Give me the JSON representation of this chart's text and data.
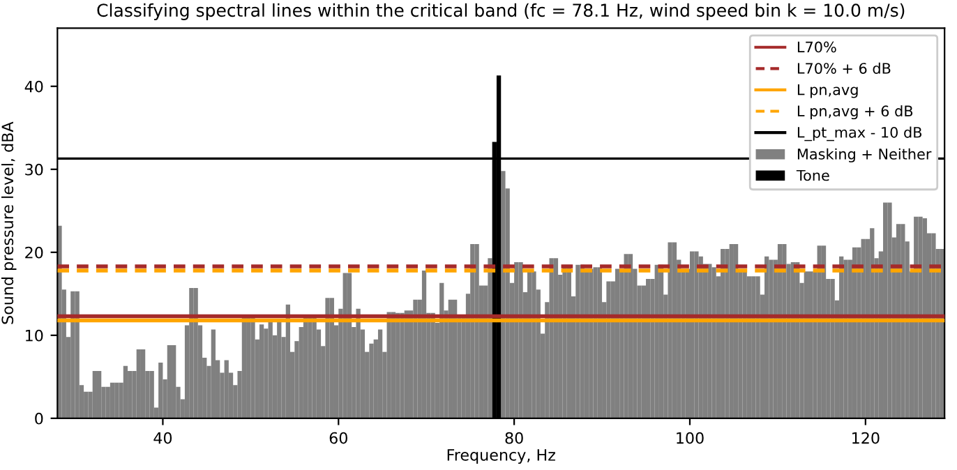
{
  "chart_data": {
    "type": "bar",
    "title": "Classifying spectral lines within the critical band (fc = 78.1 Hz, wind speed bin k = 10.0 m/s)",
    "xlabel": "Frequency, Hz",
    "ylabel": "Sound pressure level, dBA",
    "x": [
      28.0,
      28.5,
      29.0,
      29.5,
      30.0,
      30.5,
      31.0,
      31.5,
      32.0,
      32.5,
      33.0,
      33.5,
      34.0,
      34.5,
      35.0,
      35.5,
      36.0,
      36.5,
      37.0,
      37.5,
      38.0,
      38.5,
      39.0,
      39.5,
      40.0,
      40.5,
      41.0,
      41.5,
      42.0,
      42.5,
      43.0,
      43.5,
      44.0,
      44.5,
      45.0,
      45.5,
      46.0,
      46.5,
      47.0,
      47.5,
      48.0,
      48.5,
      49.0,
      49.5,
      50.0,
      50.5,
      51.0,
      51.5,
      52.0,
      52.5,
      53.0,
      53.5,
      54.0,
      54.5,
      55.0,
      55.5,
      56.0,
      56.5,
      57.0,
      57.5,
      58.0,
      58.5,
      59.0,
      59.5,
      60.0,
      60.5,
      61.0,
      61.5,
      62.0,
      62.5,
      63.0,
      63.5,
      64.0,
      64.5,
      65.0,
      65.5,
      66.0,
      66.5,
      67.0,
      67.5,
      68.0,
      68.5,
      69.0,
      69.5,
      70.0,
      70.5,
      71.0,
      71.5,
      72.0,
      72.5,
      73.0,
      73.5,
      74.0,
      74.5,
      75.0,
      75.5,
      76.0,
      76.5,
      77.0,
      77.5,
      78.0,
      78.5,
      79.0,
      79.5,
      80.0,
      80.5,
      81.0,
      81.5,
      82.0,
      82.5,
      83.0,
      83.5,
      84.0,
      84.5,
      85.0,
      85.5,
      86.0,
      86.5,
      87.0,
      87.5,
      88.0,
      88.5,
      89.0,
      89.5,
      90.0,
      90.5,
      91.0,
      91.5,
      92.0,
      92.5,
      93.0,
      93.5,
      94.0,
      94.5,
      95.0,
      95.5,
      96.0,
      96.5,
      97.0,
      97.5,
      98.0,
      98.5,
      99.0,
      99.5,
      100.0,
      100.5,
      101.0,
      101.5,
      102.0,
      102.5,
      103.0,
      103.5,
      104.0,
      104.5,
      105.0,
      105.5,
      106.0,
      106.5,
      107.0,
      107.5,
      108.0,
      108.5,
      109.0,
      109.5,
      110.0,
      110.5,
      111.0,
      111.5,
      112.0,
      112.5,
      113.0,
      113.5,
      114.0,
      114.5,
      115.0,
      115.5,
      116.0,
      116.5,
      117.0,
      117.5,
      118.0,
      118.5,
      119.0,
      119.5,
      120.0,
      120.5,
      121.0,
      121.5,
      122.0,
      122.5,
      123.0,
      123.5,
      124.0,
      124.5,
      125.0,
      125.5,
      126.0,
      126.5,
      127.0,
      127.5,
      128.0,
      128.5
    ],
    "series": [
      {
        "name": "Masking + Neither",
        "color": "#808080",
        "values": [
          23.2,
          15.5,
          9.8,
          15.3,
          15.3,
          4,
          3.2,
          3.2,
          5.7,
          5.7,
          3.8,
          3.8,
          4.3,
          4.3,
          4.3,
          6.3,
          5.7,
          5.7,
          8.3,
          8.3,
          5.7,
          5.7,
          1.3,
          6.7,
          4.7,
          8.8,
          8.8,
          3.8,
          2.3,
          11.2,
          15.7,
          15.7,
          11.2,
          7.3,
          6.3,
          10.7,
          7,
          5.5,
          7,
          5.5,
          4,
          5.7,
          12.2,
          12.2,
          12.2,
          9.5,
          11.3,
          10.8,
          11.7,
          10,
          11.7,
          9.8,
          13.7,
          8,
          9.3,
          11,
          12.5,
          12.5,
          12.2,
          10.7,
          8.7,
          14.5,
          14.5,
          11.2,
          13.2,
          17.5,
          17.5,
          11,
          13.2,
          10.7,
          8,
          9,
          9.5,
          10.7,
          8,
          12.8,
          12.8,
          12.7,
          12.7,
          13,
          13,
          14.3,
          14.3,
          17.8,
          12.7,
          12.7,
          11.5,
          16.3,
          13,
          14.3,
          14.3,
          12.3,
          12.3,
          15,
          21,
          21,
          16,
          16,
          19.3,
          null,
          null,
          29.8,
          27.7,
          16.3,
          18.8,
          18.8,
          15.2,
          17.7,
          17.7,
          15.5,
          10.2,
          14,
          19.3,
          19.3,
          17.3,
          18.5,
          18.5,
          14.7,
          18.5,
          18.5,
          18,
          18,
          18.2,
          18.2,
          14,
          16.5,
          16.5,
          18,
          18,
          19.8,
          19.8,
          18,
          16,
          16,
          16.8,
          16.8,
          18.5,
          18.5,
          14.9,
          21.2,
          21.2,
          19.1,
          18,
          18,
          20.1,
          20.1,
          19.5,
          18.6,
          18.6,
          18.2,
          17.1,
          20.4,
          20.4,
          21,
          21,
          17.7,
          17.7,
          17.1,
          17.1,
          17.1,
          14.9,
          19.5,
          19.1,
          19.1,
          21,
          21,
          18.6,
          18.8,
          18.8,
          16.3,
          17.7,
          17.7,
          17.7,
          20.8,
          20.8,
          16.8,
          16.8,
          14.2,
          19.5,
          19.1,
          19.1,
          20.6,
          20.6,
          21.6,
          21.6,
          22.9,
          19.3,
          20.1,
          26,
          26,
          21.8,
          23.4,
          23.4,
          21.3,
          17.7,
          24.3,
          24.3,
          24.1,
          22.3,
          22.3,
          20.4,
          20.4
        ]
      },
      {
        "name": "Tone",
        "color": "#000000",
        "values": [
          null,
          null,
          null,
          null,
          null,
          null,
          null,
          null,
          null,
          null,
          null,
          null,
          null,
          null,
          null,
          null,
          null,
          null,
          null,
          null,
          null,
          null,
          null,
          null,
          null,
          null,
          null,
          null,
          null,
          null,
          null,
          null,
          null,
          null,
          null,
          null,
          null,
          null,
          null,
          null,
          null,
          null,
          null,
          null,
          null,
          null,
          null,
          null,
          null,
          null,
          null,
          null,
          null,
          null,
          null,
          null,
          null,
          null,
          null,
          null,
          null,
          null,
          null,
          null,
          null,
          null,
          null,
          null,
          null,
          null,
          null,
          null,
          null,
          null,
          null,
          null,
          null,
          null,
          null,
          null,
          null,
          null,
          null,
          null,
          null,
          null,
          null,
          null,
          null,
          null,
          null,
          null,
          null,
          null,
          null,
          null,
          null,
          null,
          null,
          33.3,
          41.3,
          null,
          null,
          null,
          null,
          null,
          null,
          null,
          null,
          null,
          null,
          null,
          null,
          null,
          null,
          null,
          null,
          null,
          null,
          null,
          null,
          null,
          null,
          null,
          null,
          null,
          null,
          null,
          null,
          null,
          null,
          null,
          null,
          null,
          null,
          null,
          null,
          null,
          null,
          null,
          null,
          null,
          null,
          null,
          null,
          null,
          null,
          null,
          null,
          null,
          null,
          null,
          null,
          null,
          null,
          null,
          null,
          null,
          null,
          null,
          null,
          null,
          null,
          null,
          null,
          null,
          null,
          null,
          null,
          null,
          null,
          null,
          null,
          null,
          null,
          null,
          null,
          null,
          null,
          null,
          null,
          null,
          null,
          null,
          null,
          null,
          null,
          null,
          null,
          null,
          null,
          null,
          null,
          null,
          null,
          null,
          null,
          null,
          null,
          null,
          null,
          null
        ]
      }
    ],
    "ref_lines": [
      {
        "axis": "y",
        "value": 12.3,
        "label": "L70%",
        "color": "#a52a2a",
        "line_style": "solid"
      },
      {
        "axis": "y",
        "value": 18.3,
        "label": "L70% + 6 dB",
        "color": "#a52a2a",
        "line_style": "dashed"
      },
      {
        "axis": "y",
        "value": 11.8,
        "label": "L pn,avg",
        "color": "#ffa500",
        "line_style": "solid"
      },
      {
        "axis": "y",
        "value": 17.8,
        "label": "L pn,avg + 6 dB",
        "color": "#ffa500",
        "line_style": "dashed"
      },
      {
        "axis": "y",
        "value": 31.3,
        "label": "L_pt_max - 10 dB",
        "color": "#000000",
        "line_style": "solid"
      }
    ],
    "xlim": [
      28,
      129
    ],
    "xticks": [
      40,
      60,
      80,
      100,
      120
    ],
    "ylim": [
      0,
      47
    ],
    "yticks": [
      0,
      10,
      20,
      30,
      40
    ],
    "grid": false,
    "legend": "top right"
  }
}
